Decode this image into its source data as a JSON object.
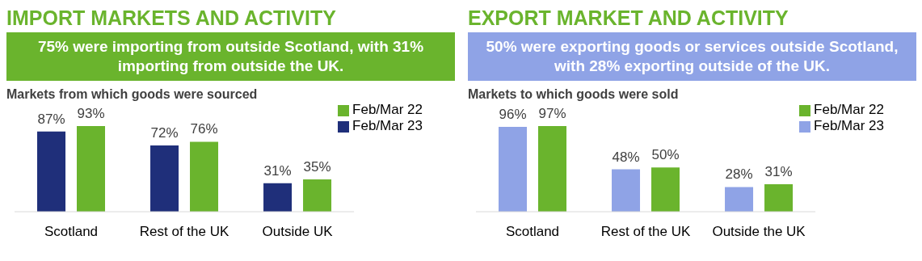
{
  "chart_data": [
    {
      "type": "bar",
      "title": "IMPORT MARKETS AND ACTIVITY",
      "subtitle": "75% were importing from outside Scotland, with 31% importing from outside the UK.",
      "annotations": [
        "Markets from which goods were sourced"
      ],
      "categories": [
        "Scotland",
        "Rest of the UK",
        "Outside UK"
      ],
      "legend": "top right",
      "series": [
        {
          "name": "Feb/Mar 23",
          "color": "#1f2f7a",
          "values": [
            87,
            72,
            31
          ],
          "value_labels": [
            "87%",
            "72%",
            "31%"
          ]
        },
        {
          "name": "Feb/Mar 22",
          "color": "#6ab42d",
          "values": [
            93,
            76,
            35
          ],
          "value_labels": [
            "93%",
            "76%",
            "35%"
          ]
        }
      ]
    },
    {
      "type": "bar",
      "title": "EXPORT MARKET AND ACTIVITY",
      "subtitle": "50% were exporting goods or services outside Scotland, with 28% exporting outside of the UK.",
      "annotations": [
        "Markets to which goods were sold"
      ],
      "categories": [
        "Scotland",
        "Rest of the UK",
        "Outside the UK"
      ],
      "legend": "top right",
      "series": [
        {
          "name": "Feb/Mar 23",
          "color": "#8fa3e6",
          "values": [
            96,
            48,
            28
          ],
          "value_labels": [
            "96%",
            "48%",
            "28%"
          ]
        },
        {
          "name": "Feb/Mar 22",
          "color": "#6ab42d",
          "values": [
            97,
            50,
            31
          ],
          "value_labels": [
            "97%",
            "50%",
            "31%"
          ]
        }
      ]
    }
  ]
}
